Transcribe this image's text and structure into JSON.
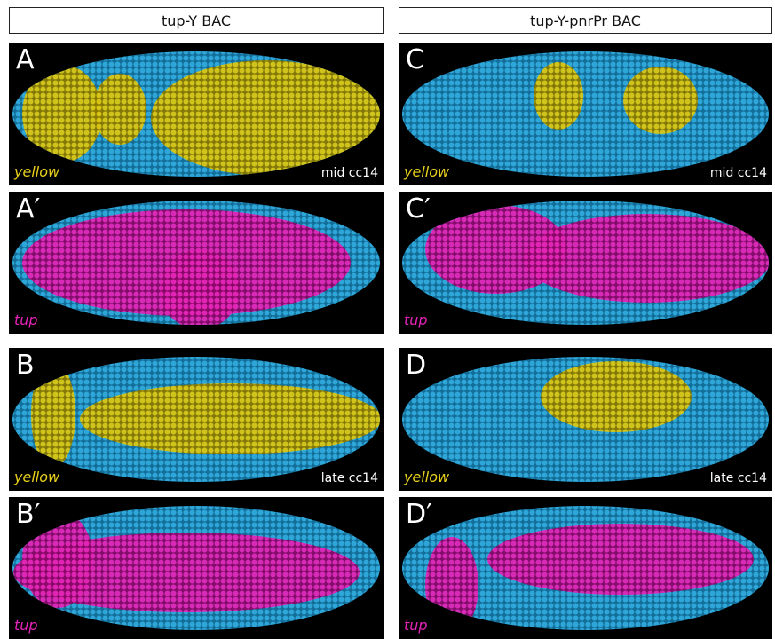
{
  "columns": [
    {
      "title": "tup-Y BAC",
      "panels": [
        {
          "label": "A",
          "stain": "yellow",
          "stage": "mid cc14"
        },
        {
          "label": "A′",
          "stain": "tup"
        },
        {
          "label": "B",
          "stain": "yellow",
          "stage": "late cc14"
        },
        {
          "label": "B′",
          "stain": "tup"
        }
      ]
    },
    {
      "title": "tup-Y-pnrPr BAC",
      "panels": [
        {
          "label": "C",
          "stain": "yellow",
          "stage": "mid cc14"
        },
        {
          "label": "C′",
          "stain": "tup"
        },
        {
          "label": "D",
          "stain": "yellow",
          "stage": "late cc14"
        },
        {
          "label": "D′",
          "stain": "tup"
        }
      ]
    }
  ]
}
